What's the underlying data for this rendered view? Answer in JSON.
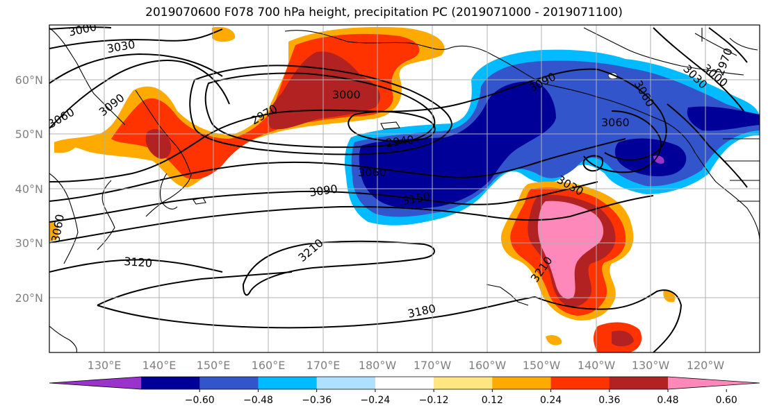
{
  "title": "2019070600 F078 700 hPa height, precipitation PC (2019071000 - 2019071100)",
  "map": {
    "lat_labels": [
      "60°N",
      "50°N",
      "40°N",
      "30°N",
      "20°N"
    ],
    "lon_labels": [
      "130°E",
      "140°E",
      "150°E",
      "160°E",
      "170°E",
      "180°W",
      "170°W",
      "160°W",
      "150°W",
      "140°W",
      "130°W",
      "120°W"
    ],
    "contour_labels": [
      "3000",
      "3030",
      "3090",
      "3060",
      "2970",
      "3000",
      "2940",
      "3060",
      "3090",
      "3150",
      "3210",
      "3120",
      "3180",
      "3090",
      "3060",
      "3030",
      "3060",
      "3030",
      "2970",
      "3000",
      "3210",
      "3060"
    ]
  },
  "colorbar": {
    "ticks": [
      "−0.60",
      "−0.48",
      "−0.36",
      "−0.24",
      "−0.12",
      "0.12",
      "0.24",
      "0.36",
      "0.48",
      "0.60"
    ],
    "colors": [
      "#9933cc",
      "#000099",
      "#3355cc",
      "#00bbff",
      "#aee0ff",
      "#ffffff",
      "#ffe680",
      "#ffaa00",
      "#ff3300",
      "#b22222",
      "#ff88bb"
    ]
  }
}
